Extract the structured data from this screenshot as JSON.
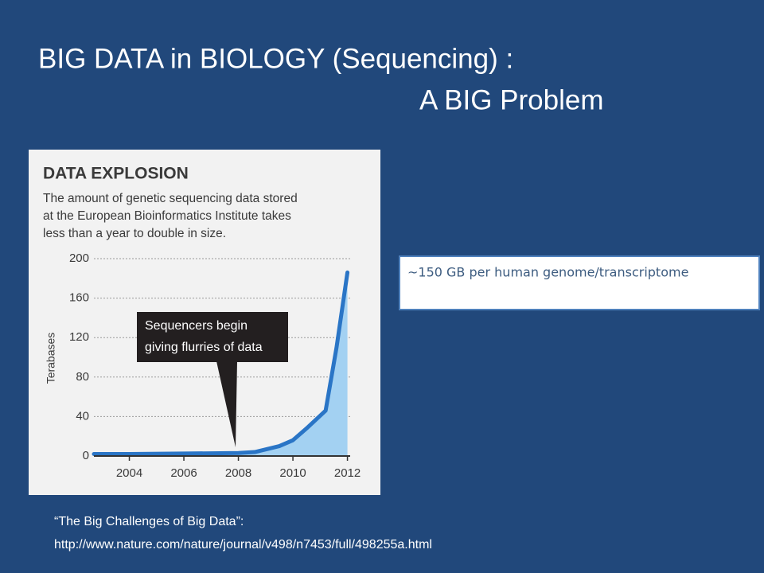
{
  "slide": {
    "title_line1": "BIG DATA in BIOLOGY (Sequencing) :",
    "title_line2": "A BIG Problem",
    "note": "~150 GB per human genome/transcriptome",
    "citation_line1": "“The Big Challenges of Big Data”:",
    "citation_line2": "http://www.nature.com/nature/journal/v498/n7453/full/498255a.html"
  },
  "chart_data": {
    "type": "area",
    "title": "DATA EXPLOSION",
    "subtitle": [
      "The amount of genetic sequencing data stored",
      "at the European Bioinformatics Institute takes",
      "less than a year to double in size."
    ],
    "ylabel": "Terabases",
    "annotation": [
      "Sequencers begin",
      "giving flurries of data"
    ],
    "x": [
      2002.7,
      2004,
      2006,
      2008,
      2008.6,
      2009.5,
      2010,
      2010.5,
      2011.2,
      2011.6,
      2012
    ],
    "values": [
      2,
      2,
      2.5,
      3,
      4,
      10,
      16,
      28,
      46,
      110,
      186
    ],
    "color": "#2a75c6",
    "fill": "#a3d1f2",
    "xlim": [
      2002.7,
      2012.1
    ],
    "xticks": [
      2004,
      2006,
      2008,
      2010,
      2012
    ],
    "ylim": [
      0,
      200
    ],
    "yticks": [
      0,
      40,
      80,
      120,
      160,
      200
    ],
    "grid": true
  }
}
